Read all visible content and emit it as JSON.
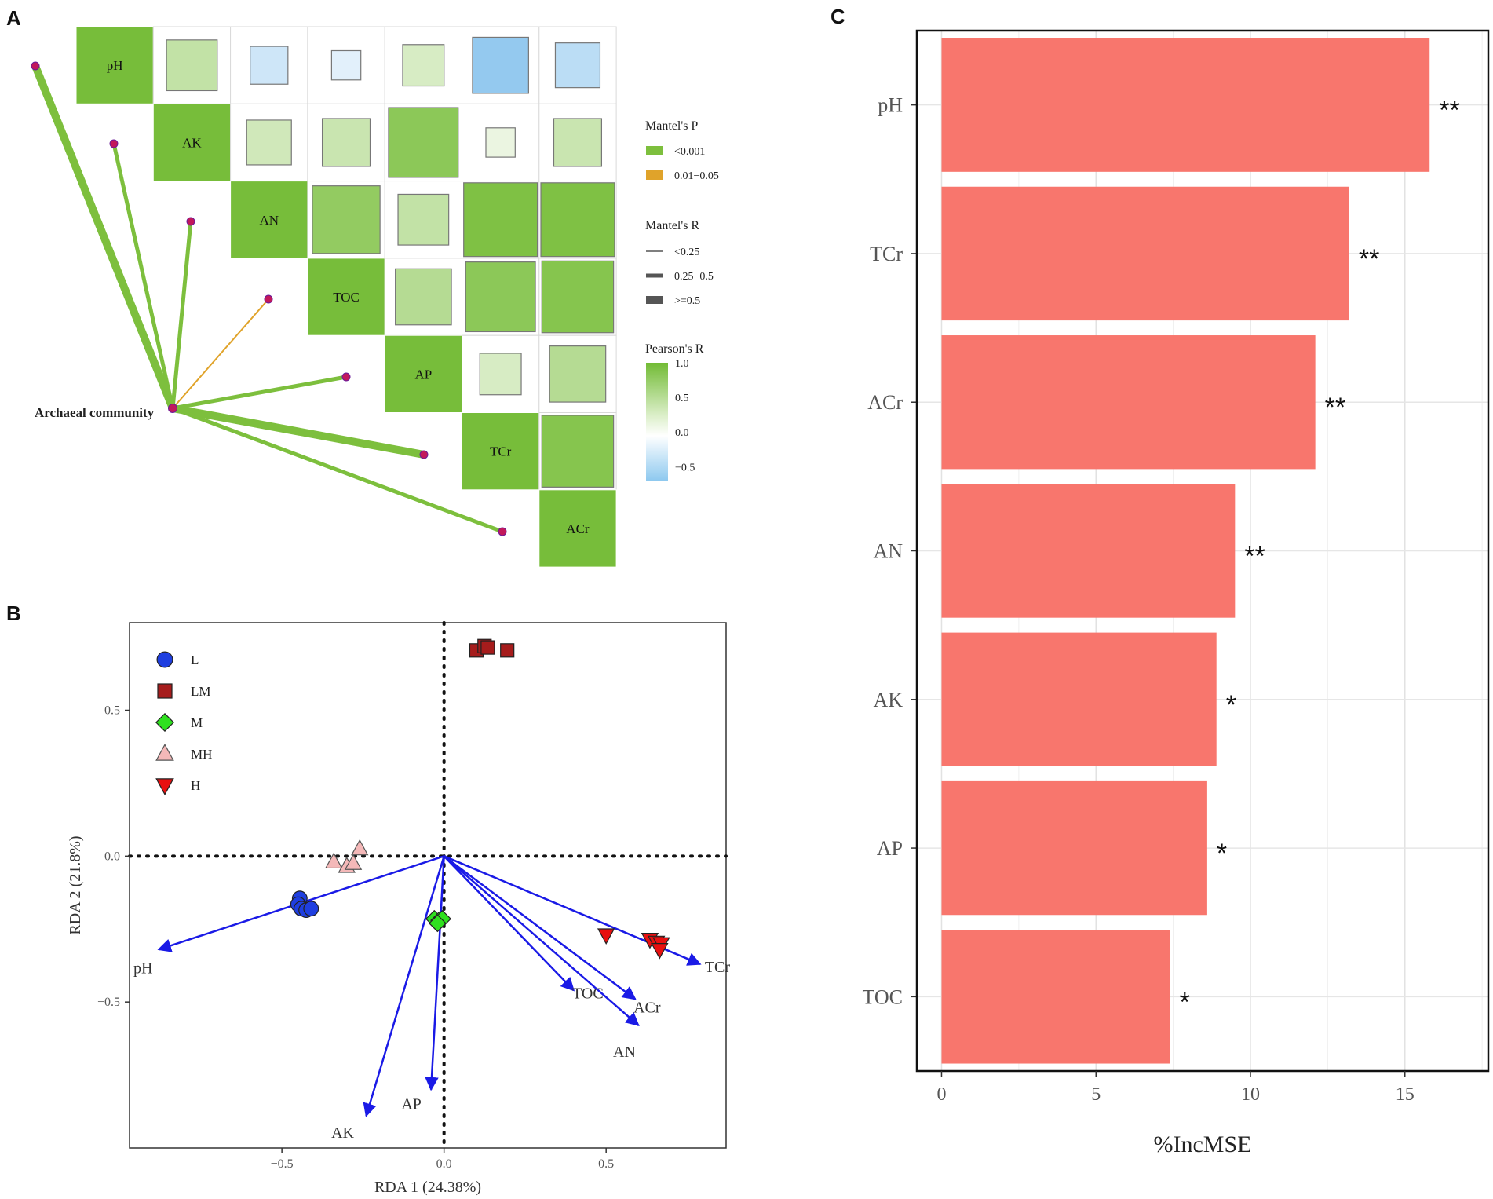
{
  "panels": {
    "a": "A",
    "b": "B",
    "c": "C"
  },
  "chart_data": [
    {
      "type": "heatmap",
      "panel": "A",
      "variables": [
        "pH",
        "AK",
        "AN",
        "TOC",
        "AP",
        "TCr",
        "ACr"
      ],
      "correlation_note": "Upper triangle of Pearson's R between soil variables (approximate, read from square size and color)",
      "pearson_r": [
        [
          1.0,
          0.45,
          -0.25,
          -0.15,
          0.3,
          -0.55,
          -0.35
        ],
        [
          null,
          1.0,
          0.35,
          0.4,
          0.85,
          0.15,
          0.4
        ],
        [
          null,
          null,
          1.0,
          0.8,
          0.45,
          0.95,
          0.95
        ],
        [
          null,
          null,
          null,
          1.0,
          0.55,
          0.85,
          0.9
        ],
        [
          null,
          null,
          null,
          null,
          1.0,
          0.3,
          0.55
        ],
        [
          null,
          null,
          null,
          null,
          null,
          1.0,
          0.9
        ],
        [
          null,
          null,
          null,
          null,
          null,
          null,
          1.0
        ]
      ],
      "mantel_source": "Archaeal community",
      "mantel_links": [
        {
          "target": "pH",
          "p_class": "<0.001",
          "r_class": ">=0.5"
        },
        {
          "target": "AK",
          "p_class": "<0.001",
          "r_class": "0.25-0.5"
        },
        {
          "target": "AN",
          "p_class": "<0.001",
          "r_class": "0.25-0.5"
        },
        {
          "target": "TOC",
          "p_class": "0.01-0.05",
          "r_class": "<0.25"
        },
        {
          "target": "AP",
          "p_class": "<0.001",
          "r_class": "0.25-0.5"
        },
        {
          "target": "TCr",
          "p_class": "<0.001",
          "r_class": ">=0.5"
        },
        {
          "target": "ACr",
          "p_class": "<0.001",
          "r_class": "0.25-0.5"
        }
      ],
      "legend": {
        "mantel_p_title": "Mantel's P",
        "mantel_p_items": [
          {
            "label": "<0.001",
            "color": "#7dbf3d"
          },
          {
            "label": "0.01−0.05",
            "color": "#e0a32a"
          }
        ],
        "mantel_r_title": "Mantel's R",
        "mantel_r_items": [
          {
            "label": "<0.25",
            "width": 1
          },
          {
            "label": "0.25−0.5",
            "width": 5
          },
          {
            "label": ">=0.5",
            "width": 10
          }
        ],
        "pearson_title": "Pearson's R",
        "pearson_ticks": [
          "1.0",
          "0.5",
          "0.0",
          "−0.5"
        ],
        "pearson_range": [
          -0.7,
          1.0
        ]
      }
    },
    {
      "type": "scatter",
      "panel": "B",
      "xlabel": "RDA 1 (24.38%)",
      "ylabel": "RDA 2 (21.8%)",
      "xlim": [
        -0.97,
        0.87
      ],
      "ylim": [
        -1.0,
        0.8
      ],
      "xticks": [
        -0.5,
        0.0,
        0.5
      ],
      "xtick_labels": [
        "−0.5",
        "0.0",
        "0.5"
      ],
      "yticks": [
        -0.5,
        0.0,
        0.5
      ],
      "ytick_labels": [
        "−0.5",
        "0.0",
        "0.5"
      ],
      "series": [
        {
          "name": "L",
          "shape": "circle",
          "color": "#1f3fe0",
          "points": [
            [
              -0.445,
              -0.145
            ],
            [
              -0.45,
              -0.165
            ],
            [
              -0.44,
              -0.18
            ],
            [
              -0.425,
              -0.185
            ],
            [
              -0.41,
              -0.18
            ]
          ]
        },
        {
          "name": "LM",
          "shape": "square",
          "color": "#a61c1c",
          "points": [
            [
              0.1,
              0.705
            ],
            [
              0.125,
              0.72
            ],
            [
              0.135,
              0.715
            ],
            [
              0.195,
              0.705
            ]
          ]
        },
        {
          "name": "M",
          "shape": "diamond",
          "color": "#2fe01f",
          "points": [
            [
              -0.03,
              -0.215
            ],
            [
              -0.015,
              -0.22
            ],
            [
              -0.005,
              -0.215
            ],
            [
              -0.02,
              -0.23
            ]
          ]
        },
        {
          "name": "MH",
          "shape": "triangle",
          "color": "#f4b8b8",
          "points": [
            [
              -0.34,
              -0.02
            ],
            [
              -0.3,
              -0.035
            ],
            [
              -0.28,
              -0.025
            ],
            [
              -0.26,
              0.025
            ]
          ]
        },
        {
          "name": "H",
          "shape": "triangle-down",
          "color": "#e81010",
          "points": [
            [
              0.5,
              -0.27
            ],
            [
              0.635,
              -0.285
            ],
            [
              0.655,
              -0.295
            ],
            [
              0.67,
              -0.3
            ],
            [
              0.665,
              -0.32
            ]
          ]
        }
      ],
      "vectors": [
        {
          "name": "pH",
          "x": -0.88,
          "y": -0.32
        },
        {
          "name": "AK",
          "x": -0.24,
          "y": -0.89
        },
        {
          "name": "AP",
          "x": -0.04,
          "y": -0.8
        },
        {
          "name": "TOC",
          "x": 0.4,
          "y": -0.46
        },
        {
          "name": "AN",
          "x": 0.6,
          "y": -0.58
        },
        {
          "name": "ACr",
          "x": 0.59,
          "y": -0.49
        },
        {
          "name": "TCr",
          "x": 0.79,
          "y": -0.37
        }
      ]
    },
    {
      "type": "bar",
      "panel": "C",
      "orientation": "horizontal",
      "xlabel": "%IncMSE",
      "ylabel": "",
      "xlim": [
        -0.8,
        17.7
      ],
      "xticks": [
        0,
        5,
        10,
        15
      ],
      "xtick_labels": [
        "0",
        "5",
        "10",
        "15"
      ],
      "categories": [
        "pH",
        "TCr",
        "ACr",
        "AN",
        "AK",
        "AP",
        "TOC"
      ],
      "values": [
        15.8,
        13.2,
        12.1,
        9.5,
        8.9,
        8.6,
        7.4
      ],
      "significance": [
        "**",
        "**",
        "**",
        "**",
        "*",
        "*",
        "*"
      ],
      "bar_color": "#f8766d"
    }
  ]
}
